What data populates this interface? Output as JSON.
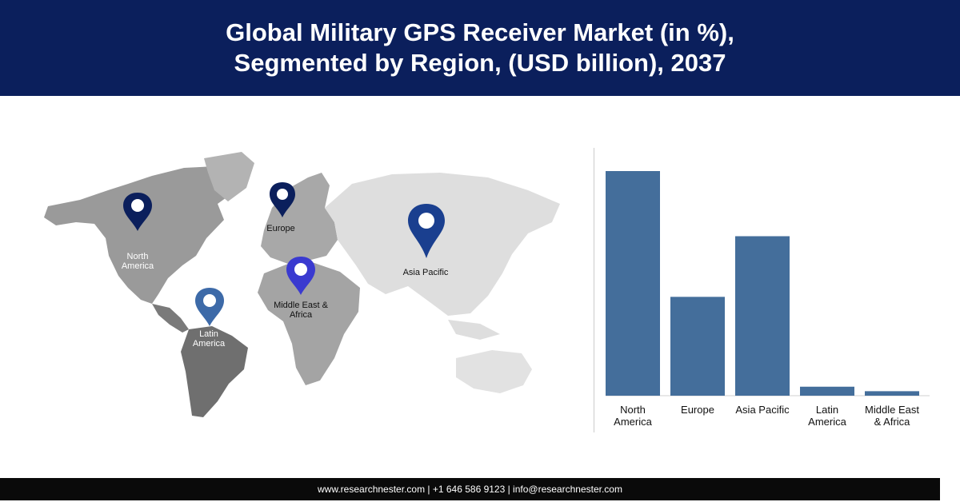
{
  "header": {
    "title_line1": "Global Military GPS Receiver Market (in %),",
    "title_line2": "Segmented by Region, (USD billion), 2037"
  },
  "map": {
    "pins": [
      {
        "id": "north-america",
        "label": [
          "North",
          "America"
        ],
        "color": "#0b1f5c"
      },
      {
        "id": "europe",
        "label": [
          "Europe"
        ],
        "color": "#0b1f5c"
      },
      {
        "id": "asia-pacific",
        "label": [
          "Asia Pacific"
        ],
        "color": "#1a3f8f"
      },
      {
        "id": "middle-east-africa",
        "label": [
          "Middle East &",
          "Africa"
        ],
        "color": "#3a3ad0"
      },
      {
        "id": "latin-america",
        "label": [
          "Latin",
          "America"
        ],
        "color": "#3d6aa8"
      }
    ]
  },
  "chart_data": {
    "type": "bar",
    "categories": [
      "North America",
      "Europe",
      "Asia Pacific",
      "Latin America",
      "Middle East & Africa"
    ],
    "category_labels": [
      [
        "North",
        "America"
      ],
      [
        "Europe"
      ],
      [
        "Asia Pacific"
      ],
      [
        "Latin",
        "America"
      ],
      [
        "Middle East",
        "& Africa"
      ]
    ],
    "values": [
      100,
      44,
      71,
      4,
      2
    ],
    "ylim": [
      0,
      100
    ],
    "bar_color": "#446e9b",
    "grid": false,
    "legend": "none"
  },
  "footer": {
    "text": "www.researchnester.com | +1 646 586 9123 | info@researchnester.com"
  }
}
